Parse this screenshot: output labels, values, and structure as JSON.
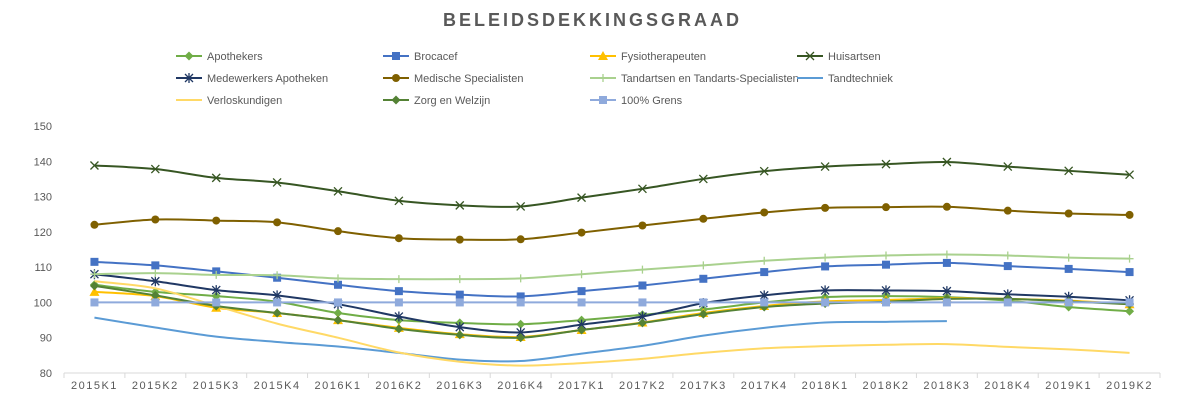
{
  "chart_data": {
    "type": "line",
    "title": "BELEIDSDEKKINGSGRAAD",
    "xlabel": "",
    "ylabel": "",
    "ylim": [
      80,
      150
    ],
    "yticks": [
      80,
      90,
      100,
      110,
      120,
      130,
      140,
      150
    ],
    "grid": false,
    "legend_placement": "top",
    "categories": [
      "2015K1",
      "2015K2",
      "2015K3",
      "2015K4",
      "2016K1",
      "2016K2",
      "2016K3",
      "2016K4",
      "2017K1",
      "2017K2",
      "2017K3",
      "2017K4",
      "2018K1",
      "2018K2",
      "2018K3",
      "2018K4",
      "2019K1",
      "2019K2"
    ],
    "series": [
      {
        "name": "Apothekers",
        "color": "#70ad47",
        "marker": "diamond",
        "values": [
          105.0,
          103.0,
          101.8,
          100.2,
          97.0,
          95.0,
          94.2,
          93.8,
          95.0,
          96.5,
          98.0,
          100.0,
          101.5,
          101.8,
          101.5,
          100.5,
          98.7,
          97.5
        ]
      },
      {
        "name": "Brocacef",
        "color": "#4472c4",
        "marker": "square",
        "values": [
          111.5,
          110.5,
          108.8,
          107.0,
          105.0,
          103.2,
          102.2,
          101.7,
          103.2,
          104.8,
          106.7,
          108.6,
          110.2,
          110.7,
          111.2,
          110.3,
          109.5,
          108.6
        ]
      },
      {
        "name": "Fysiotherapeuten",
        "color": "#ffc000",
        "marker": "triangle",
        "values": [
          103.0,
          101.8,
          98.5,
          97.0,
          95.0,
          92.8,
          91.0,
          90.2,
          92.2,
          94.3,
          97.0,
          99.0,
          100.3,
          100.7,
          101.2,
          101.0,
          100.5,
          99.5
        ]
      },
      {
        "name": "Huisartsen",
        "color": "#375623",
        "marker": "x",
        "values": [
          138.8,
          137.8,
          135.3,
          134.0,
          131.5,
          128.8,
          127.5,
          127.2,
          129.7,
          132.2,
          135.0,
          137.2,
          138.5,
          139.2,
          139.8,
          138.5,
          137.3,
          136.2
        ]
      },
      {
        "name": "Medewerkers Apotheken",
        "color": "#203864",
        "marker": "star",
        "values": [
          108.0,
          106.0,
          103.5,
          102.0,
          99.5,
          96.0,
          93.0,
          91.5,
          93.7,
          96.0,
          99.8,
          102.0,
          103.4,
          103.4,
          103.2,
          102.3,
          101.6,
          100.6
        ]
      },
      {
        "name": "Medische Specialisten",
        "color": "#7f6000",
        "marker": "circle",
        "values": [
          122.0,
          123.5,
          123.2,
          122.7,
          120.2,
          118.2,
          117.8,
          117.9,
          119.8,
          121.8,
          123.7,
          125.5,
          126.8,
          127.0,
          127.1,
          126.0,
          125.2,
          124.8
        ]
      },
      {
        "name": "Tandartsen en Tandarts-Specialisten",
        "color": "#a9d18e",
        "marker": "plus",
        "values": [
          108.0,
          108.3,
          107.8,
          107.7,
          106.8,
          106.6,
          106.6,
          106.8,
          108.0,
          109.3,
          110.5,
          111.8,
          112.7,
          113.3,
          113.6,
          113.3,
          112.7,
          112.4
        ]
      },
      {
        "name": "Tandtechniek",
        "color": "#5b9bd5",
        "marker": "none",
        "values": [
          95.7,
          92.9,
          90.3,
          88.8,
          87.5,
          85.7,
          83.8,
          83.4,
          85.5,
          87.7,
          90.6,
          92.8,
          94.3,
          94.5,
          94.7,
          null,
          null,
          null
        ]
      },
      {
        "name": "Verloskundigen",
        "color": "#ffd966",
        "marker": "none",
        "values": [
          106.0,
          104.0,
          99.0,
          94.0,
          90.0,
          85.8,
          83.2,
          82.1,
          82.8,
          84.0,
          85.7,
          87.0,
          87.6,
          88.0,
          88.2,
          87.4,
          86.7,
          85.7
        ]
      },
      {
        "name": "Zorg en Welzijn",
        "color": "#548235",
        "marker": "diamond",
        "values": [
          104.7,
          102.0,
          99.0,
          97.0,
          95.0,
          92.5,
          90.8,
          90.0,
          92.2,
          94.2,
          96.7,
          98.7,
          99.7,
          100.2,
          101.0,
          101.0,
          100.3,
          99.5
        ]
      },
      {
        "name": "100% Grens",
        "color": "#8faadc",
        "marker": "square",
        "values": [
          100,
          100,
          100,
          100,
          100,
          100,
          100,
          100,
          100,
          100,
          100,
          100,
          100,
          100,
          100,
          100,
          100,
          100
        ]
      }
    ]
  }
}
